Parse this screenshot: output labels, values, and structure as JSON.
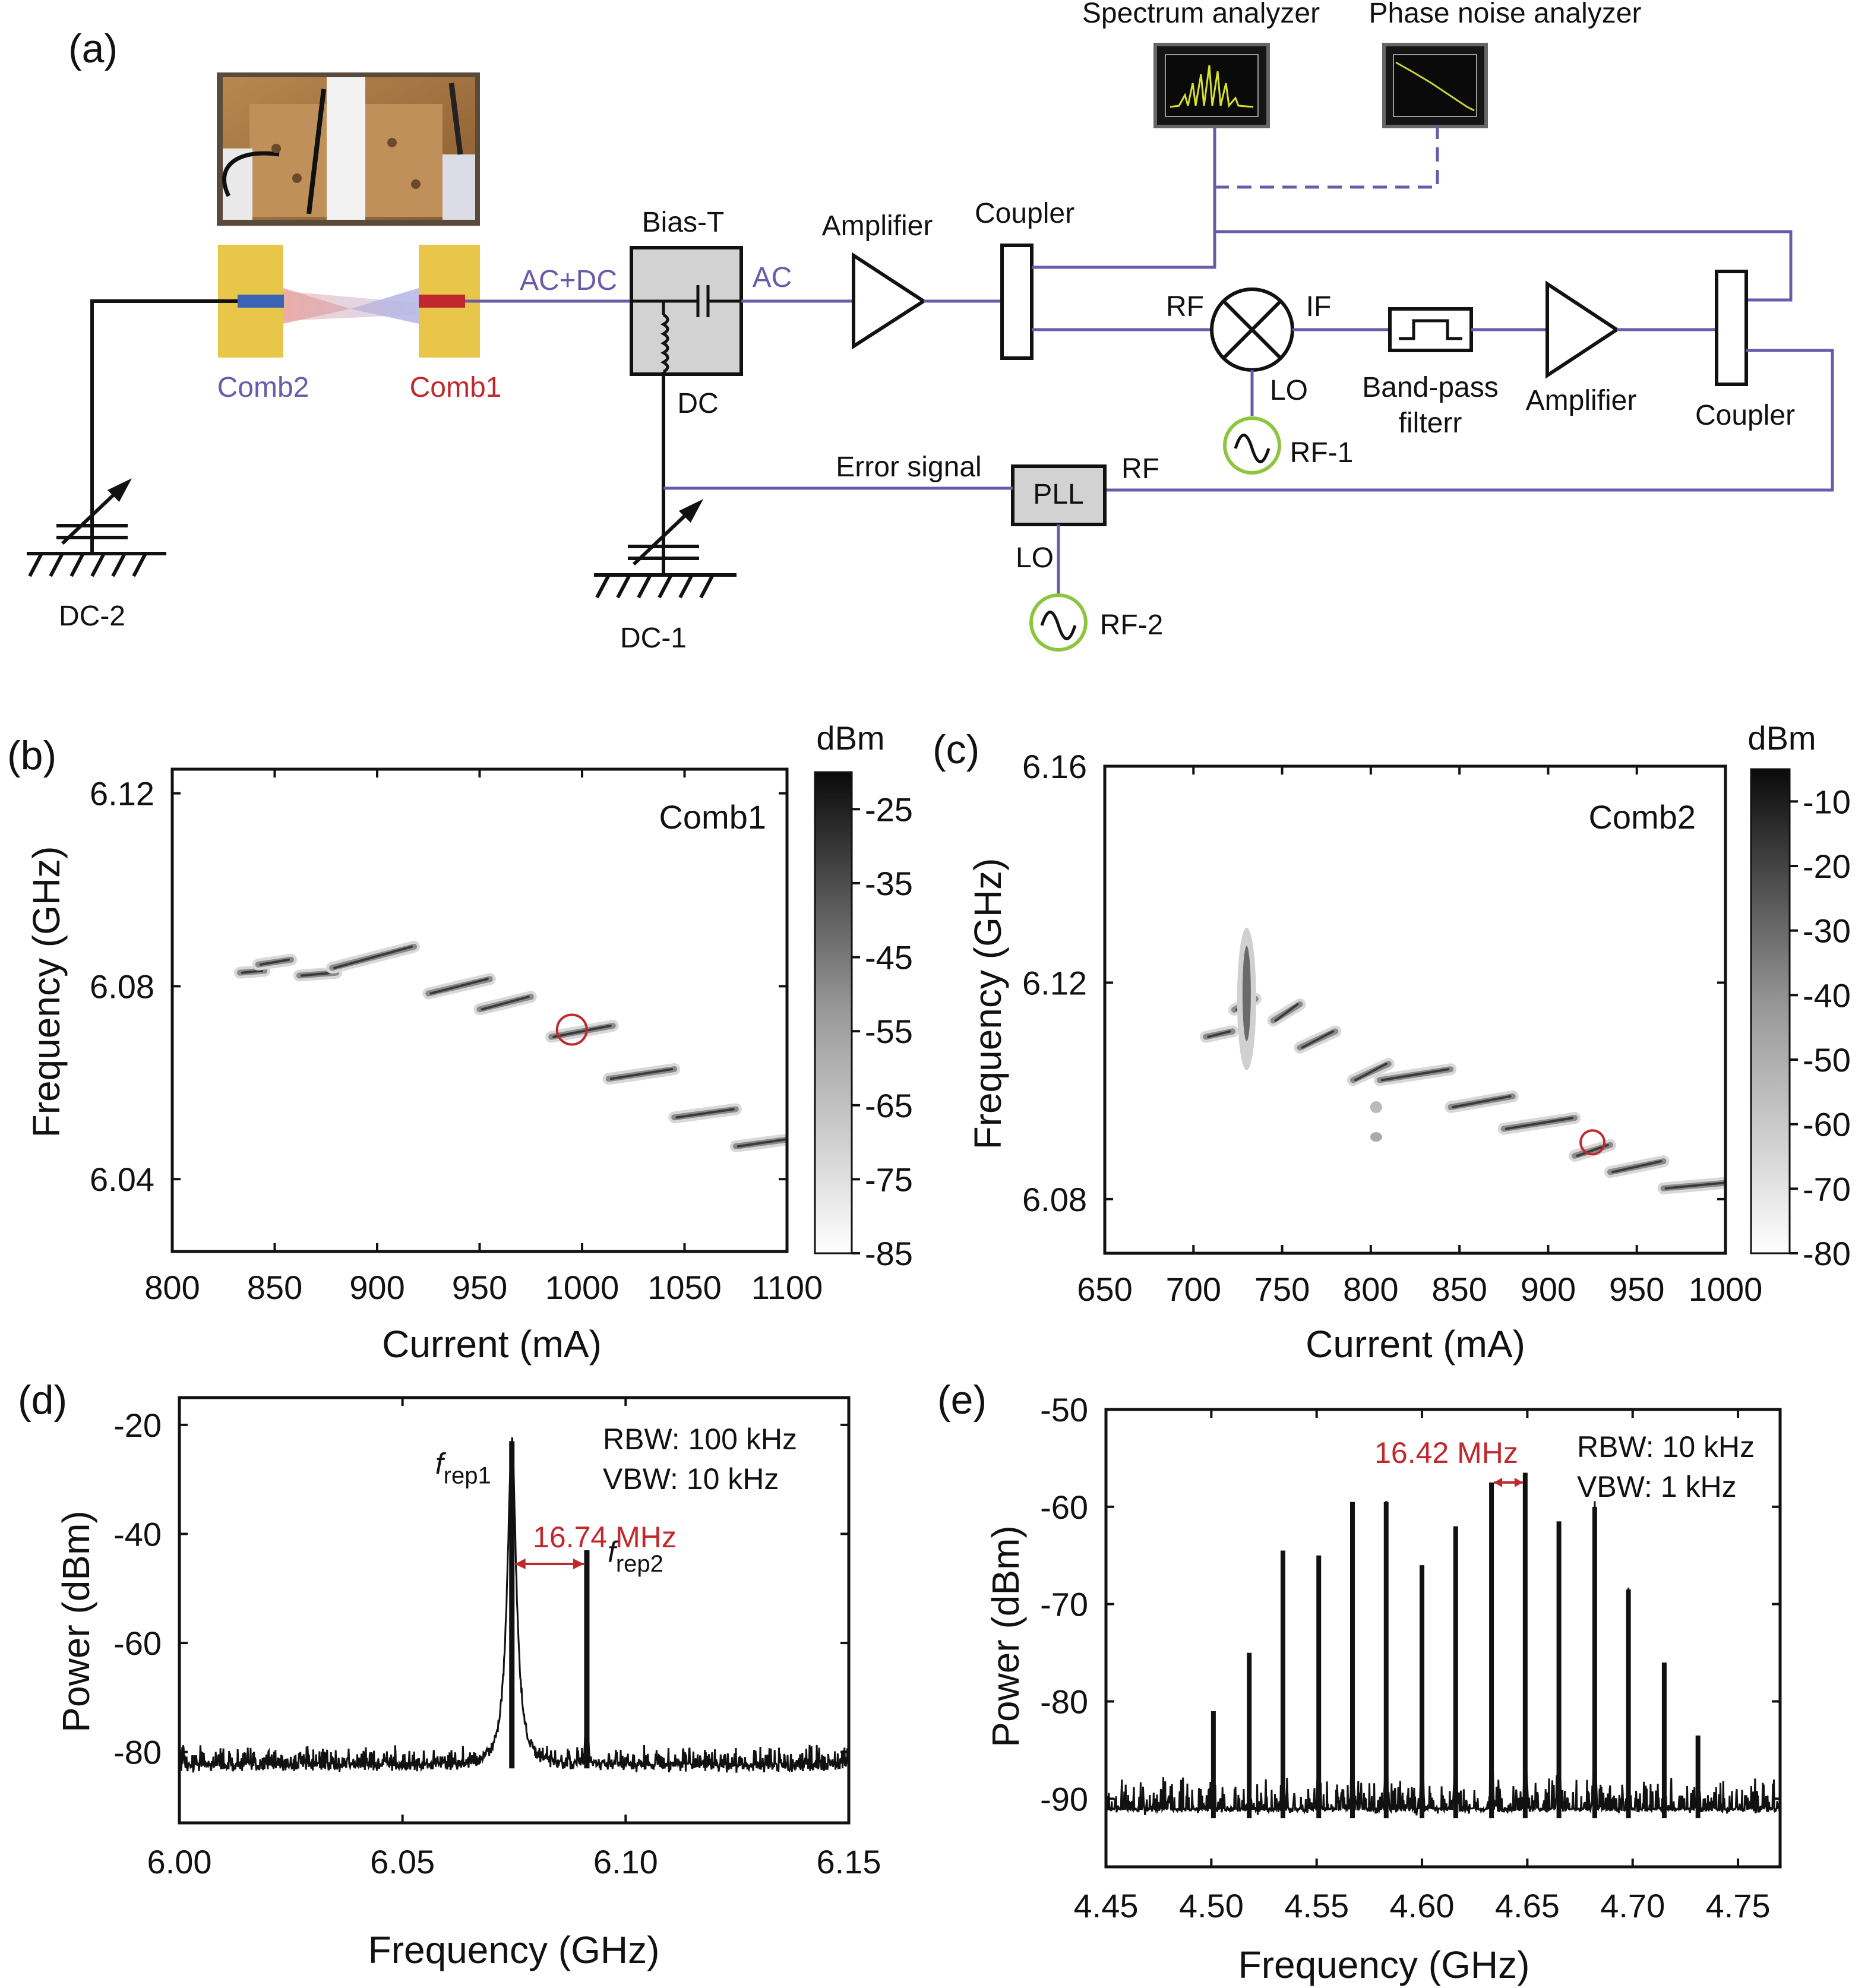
{
  "panel_a": {
    "label": "(a)",
    "spectrum_analyzer": "Spectrum analyzer",
    "phase_noise_analyzer": "Phase noise analyzer",
    "bias_t": "Bias-T",
    "amplifier1": "Amplifier",
    "coupler1": "Coupler",
    "ac_dc": "AC+DC",
    "ac": "AC",
    "dc": "DC",
    "comb2": "Comb2",
    "comb1": "Comb1",
    "rf": "RF",
    "if": "IF",
    "lo": "LO",
    "rf1": "RF-1",
    "bandpass_line1": "Band-pass",
    "bandpass_line2": "filterr",
    "amplifier2": "Amplifier",
    "coupler2": "Coupler",
    "error_signal": "Error signal",
    "pll": "PLL",
    "pll_rf": "RF",
    "pll_lo": "LO",
    "rf2": "RF-2",
    "dc2": "DC-2",
    "dc1": "DC-1",
    "colors": {
      "wire": "#6a5aa8",
      "comb1": "#c0282d",
      "comb2": "#3a63b5",
      "pad": "#e8c64a",
      "oscillator": "#8cc63f"
    }
  },
  "chart_data": [
    {
      "panel": "(b)",
      "type": "heatmap",
      "annotation": "Comb1",
      "xlabel": "Current (mA)",
      "ylabel": "Frequency (GHz)",
      "xlim": [
        800,
        1100
      ],
      "ylim": [
        6.025,
        6.125
      ],
      "xticks": [
        "800",
        "850",
        "900",
        "950",
        "1000",
        "1050",
        "1100"
      ],
      "yticks": [
        "6.12",
        "6.08",
        "6.04"
      ],
      "colorbar_title": "dBm",
      "colorbar_ticks": [
        "-25",
        "-35",
        "-45",
        "-55",
        "-65",
        "-75",
        "-85"
      ],
      "colorbar_range": [
        -85,
        -20
      ],
      "lines": [
        {
          "x": [
            833,
            845
          ],
          "y": [
            6.0828,
            6.0832
          ]
        },
        {
          "x": [
            842,
            858
          ],
          "y": [
            6.0845,
            6.0855
          ]
        },
        {
          "x": [
            862,
            880
          ],
          "y": [
            6.0822,
            6.0828
          ]
        },
        {
          "x": [
            878,
            918
          ],
          "y": [
            6.0838,
            6.0882
          ]
        },
        {
          "x": [
            925,
            955
          ],
          "y": [
            6.0785,
            6.0815
          ]
        },
        {
          "x": [
            950,
            975
          ],
          "y": [
            6.0752,
            6.0778
          ]
        },
        {
          "x": [
            985,
            1015
          ],
          "y": [
            6.0695,
            6.0718
          ]
        },
        {
          "x": [
            1013,
            1045
          ],
          "y": [
            6.0608,
            6.0628
          ]
        },
        {
          "x": [
            1045,
            1075
          ],
          "y": [
            6.0528,
            6.0545
          ]
        },
        {
          "x": [
            1075,
            1100
          ],
          "y": [
            6.0468,
            6.0482
          ]
        }
      ],
      "marker": {
        "x": 995,
        "y": 6.071
      }
    },
    {
      "panel": "(c)",
      "type": "heatmap",
      "annotation": "Comb2",
      "xlabel": "Current (mA)",
      "ylabel": "Frequency (GHz)",
      "xlim": [
        650,
        1000
      ],
      "ylim": [
        6.07,
        6.16
      ],
      "xticks": [
        "650",
        "700",
        "750",
        "800",
        "850",
        "900",
        "950",
        "1000"
      ],
      "yticks": [
        "6.16",
        "6.12",
        "6.08"
      ],
      "colorbar_title": "dBm",
      "colorbar_ticks": [
        "-10",
        "-20",
        "-30",
        "-40",
        "-50",
        "-60",
        "-70",
        "-80"
      ],
      "colorbar_range": [
        -80,
        -5
      ],
      "lines": [
        {
          "x": [
            707,
            722
          ],
          "y": [
            6.11,
            6.111
          ]
        },
        {
          "x": [
            723,
            735
          ],
          "y": [
            6.115,
            6.117
          ]
        },
        {
          "x": [
            745,
            760
          ],
          "y": [
            6.113,
            6.116
          ]
        },
        {
          "x": [
            760,
            780
          ],
          "y": [
            6.108,
            6.111
          ]
        },
        {
          "x": [
            790,
            810
          ],
          "y": [
            6.102,
            6.105
          ]
        },
        {
          "x": [
            805,
            845
          ],
          "y": [
            6.102,
            6.104
          ]
        },
        {
          "x": [
            845,
            880
          ],
          "y": [
            6.097,
            6.099
          ]
        },
        {
          "x": [
            875,
            915
          ],
          "y": [
            6.093,
            6.095
          ]
        },
        {
          "x": [
            915,
            935
          ],
          "y": [
            6.088,
            6.09
          ]
        },
        {
          "x": [
            935,
            965
          ],
          "y": [
            6.085,
            6.087
          ]
        },
        {
          "x": [
            965,
            1000
          ],
          "y": [
            6.082,
            6.083
          ]
        }
      ],
      "marker": {
        "x": 925,
        "y": 6.0905
      }
    },
    {
      "panel": "(d)",
      "type": "line",
      "xlabel": "Frequency (GHz)",
      "ylabel": "Power (dBm)",
      "xlim": [
        6.0,
        6.15
      ],
      "ylim": [
        -93,
        -15
      ],
      "xticks": [
        "6.00",
        "6.05",
        "6.10",
        "6.15"
      ],
      "yticks": [
        "-20",
        "-40",
        "-60",
        "-80"
      ],
      "noise_floor": -83,
      "peaks": [
        {
          "label_main": "f",
          "label_sub": "rep1",
          "x": 6.0745,
          "y": -23
        },
        {
          "label_main": "f",
          "label_sub": "rep2",
          "x": 6.0913,
          "y": -43
        }
      ],
      "spacing_label": "16.74 MHz",
      "rbw": "RBW: 100 kHz",
      "vbw": "VBW: 10 kHz"
    },
    {
      "panel": "(e)",
      "type": "line",
      "xlabel": "Frequency (GHz)",
      "ylabel": "Power (dBm)",
      "xlim": [
        4.45,
        4.77
      ],
      "ylim": [
        -97,
        -50
      ],
      "xticks": [
        "4.45",
        "4.50",
        "4.55",
        "4.60",
        "4.65",
        "4.70",
        "4.75"
      ],
      "yticks": [
        "-50",
        "-60",
        "-70",
        "-80",
        "-90"
      ],
      "noise_floor": -92,
      "peak_x": [
        4.501,
        4.518,
        4.534,
        4.551,
        4.567,
        4.583,
        4.6,
        4.616,
        4.633,
        4.649,
        4.665,
        4.682,
        4.698,
        4.715,
        4.731
      ],
      "peak_y": [
        -81,
        -75,
        -64.5,
        -65,
        -59.5,
        -59.5,
        -66,
        -62,
        -57.5,
        -56.5,
        -61.5,
        -60,
        -68.5,
        -76,
        -83.5
      ],
      "spacing_label": "16.42 MHz",
      "rbw": "RBW: 10 kHz",
      "vbw": "VBW: 1 kHz"
    }
  ]
}
